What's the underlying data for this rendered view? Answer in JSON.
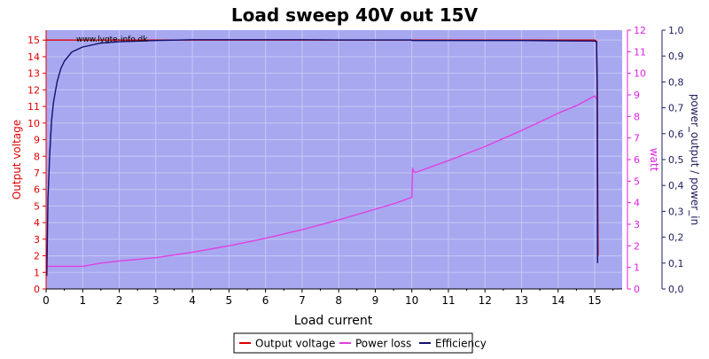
{
  "chart_data": {
    "type": "line",
    "title": "Load sweep 40V out 15V",
    "xlabel": "Load current",
    "ylabel_left": "Output voltage",
    "ylabel_right1": "watt",
    "ylabel_right2": "power_output / power_in",
    "watermark": "www.lygte-info.dk",
    "xlim": [
      0,
      15.75
    ],
    "ylim_left": [
      0,
      15.6
    ],
    "ylim_right1": [
      0,
      12
    ],
    "ylim_right2": [
      0,
      1.0
    ],
    "x_ticks": [
      "0",
      "1",
      "2",
      "3",
      "4",
      "5",
      "6",
      "7",
      "8",
      "9",
      "10",
      "11",
      "12",
      "13",
      "14",
      "15"
    ],
    "y_left_ticks": [
      "0",
      "1",
      "2",
      "3",
      "4",
      "5",
      "6",
      "7",
      "8",
      "9",
      "10",
      "11",
      "12",
      "13",
      "14",
      "15"
    ],
    "y_right1_ticks": [
      "0",
      "1",
      "2",
      "3",
      "4",
      "5",
      "6",
      "7",
      "8",
      "9",
      "10",
      "11",
      "12"
    ],
    "y_right2_ticks": [
      "0,0",
      "0,1",
      "0,2",
      "0,3",
      "0,4",
      "0,5",
      "0,6",
      "0,7",
      "0,8",
      "0,9",
      "1,0"
    ],
    "legend_position": "bottom",
    "grid": true,
    "colors": {
      "plot_bg": "#a8a8f0",
      "grid": "#c6c6f6",
      "output_voltage": "#e00000",
      "power_loss": "#e040e0",
      "efficiency": "#101070",
      "left_axis": "#e00000",
      "right1_axis": "#e020e0",
      "right2_axis": "#202060",
      "x_axis": "#000000"
    },
    "series": [
      {
        "name": "Output voltage",
        "axis": "left",
        "x": [
          0.0,
          1.0,
          2.0,
          3.0,
          4.0,
          5.0,
          6.0,
          7.0,
          8.0,
          9.0,
          10.0,
          10.05,
          11.0,
          12.0,
          13.0,
          14.0,
          15.0,
          15.05,
          15.07,
          15.09
        ],
        "values": [
          15.0,
          15.0,
          15.0,
          15.0,
          15.0,
          15.0,
          15.0,
          15.0,
          15.0,
          15.0,
          15.0,
          15.0,
          15.0,
          15.0,
          15.0,
          15.0,
          15.0,
          14.95,
          12.0,
          2.0
        ]
      },
      {
        "name": "Power loss",
        "axis": "right1",
        "x": [
          0.0,
          0.5,
          1.0,
          1.5,
          2.0,
          3.0,
          4.0,
          5.0,
          6.0,
          7.0,
          8.0,
          9.0,
          9.5,
          10.0,
          10.02,
          10.05,
          10.1,
          11.0,
          12.0,
          13.0,
          14.0,
          14.5,
          15.0,
          15.05
        ],
        "values": [
          1.05,
          1.05,
          1.05,
          1.2,
          1.3,
          1.45,
          1.7,
          2.0,
          2.35,
          2.75,
          3.2,
          3.7,
          3.95,
          4.25,
          5.6,
          5.45,
          5.4,
          5.95,
          6.6,
          7.35,
          8.15,
          8.5,
          8.95,
          8.8
        ]
      },
      {
        "name": "Efficiency",
        "axis": "right2",
        "x": [
          0.02,
          0.05,
          0.1,
          0.15,
          0.2,
          0.3,
          0.4,
          0.5,
          0.7,
          1.0,
          1.5,
          2.0,
          3.0,
          4.0,
          5.0,
          6.0,
          7.0,
          8.0,
          9.0,
          9.99,
          10.0,
          11.0,
          12.0,
          13.0,
          14.0,
          15.0,
          15.05,
          15.07,
          15.08
        ],
        "values": [
          0.05,
          0.35,
          0.52,
          0.65,
          0.72,
          0.8,
          0.85,
          0.88,
          0.915,
          0.935,
          0.95,
          0.955,
          0.96,
          0.963,
          0.963,
          0.963,
          0.963,
          0.962,
          0.962,
          0.962,
          0.96,
          0.96,
          0.96,
          0.96,
          0.959,
          0.958,
          0.955,
          0.8,
          0.1
        ]
      }
    ]
  }
}
